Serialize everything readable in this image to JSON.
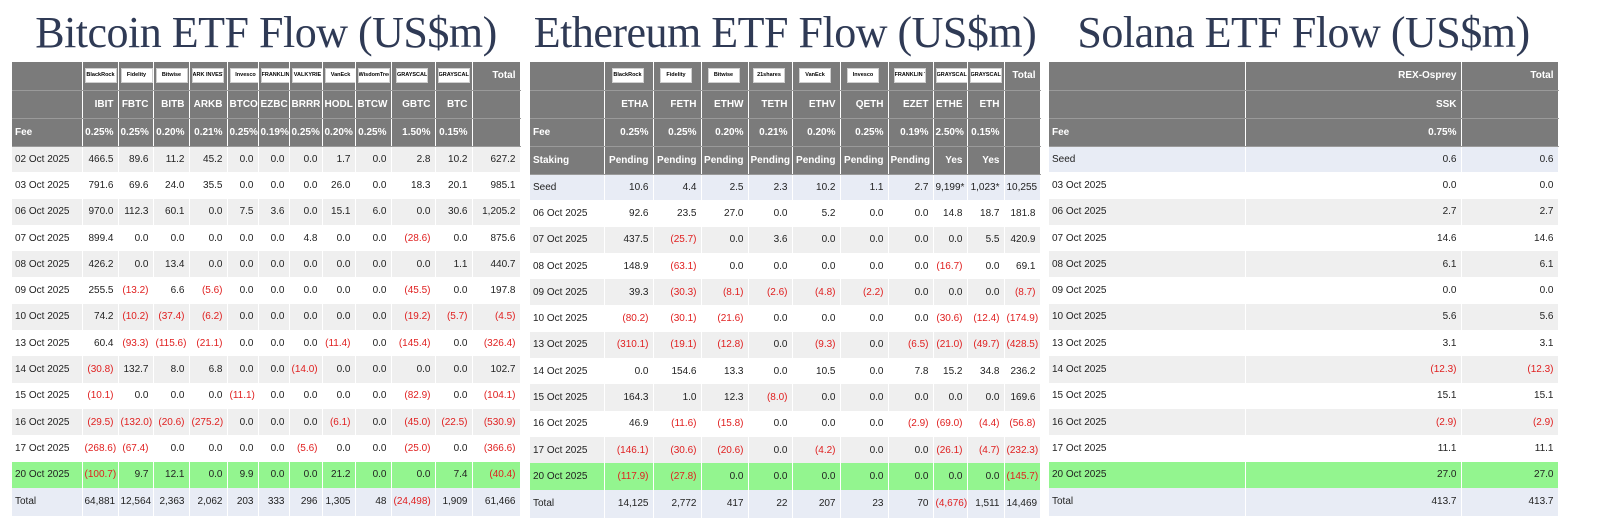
{
  "panels": [
    {
      "id": "btc",
      "title": "Bitcoin ETF Flow (US$m)",
      "issuers": [
        "BlackRock",
        "Fidelity",
        "Bitwise",
        "ARK INVEST",
        "Invesco",
        "FRANKLIN TEMPLETON",
        "VALKYRIE",
        "VanEck",
        "WisdomTree",
        "GRAYSCALE",
        "GRAYSCALE"
      ],
      "total_label": "Total",
      "tickers": [
        "IBIT",
        "FBTC",
        "BITB",
        "ARKB",
        "BTCO",
        "EZBC",
        "BRRR",
        "HODL",
        "BTCW",
        "GBTC",
        "BTC"
      ],
      "fee_label": "Fee",
      "fees": [
        "0.25%",
        "0.25%",
        "0.20%",
        "0.21%",
        "0.25%",
        "0.19%",
        "0.25%",
        "0.20%",
        "0.25%",
        "1.50%",
        "0.15%"
      ],
      "rows": [
        {
          "date": "02 Oct 2025",
          "values": [
            "466.5",
            "89.6",
            "11.2",
            "45.2",
            "0.0",
            "0.0",
            "0.0",
            "1.7",
            "0.0",
            "2.8",
            "10.2"
          ],
          "total": "627.2"
        },
        {
          "date": "03 Oct 2025",
          "values": [
            "791.6",
            "69.6",
            "24.0",
            "35.5",
            "0.0",
            "0.0",
            "0.0",
            "26.0",
            "0.0",
            "18.3",
            "20.1"
          ],
          "total": "985.1"
        },
        {
          "date": "06 Oct 2025",
          "values": [
            "970.0",
            "112.3",
            "60.1",
            "0.0",
            "7.5",
            "3.6",
            "0.0",
            "15.1",
            "6.0",
            "0.0",
            "30.6"
          ],
          "total": "1,205.2"
        },
        {
          "date": "07 Oct 2025",
          "values": [
            "899.4",
            "0.0",
            "0.0",
            "0.0",
            "0.0",
            "0.0",
            "4.8",
            "0.0",
            "0.0",
            "(28.6)",
            "0.0"
          ],
          "total": "875.6"
        },
        {
          "date": "08 Oct 2025",
          "values": [
            "426.2",
            "0.0",
            "13.4",
            "0.0",
            "0.0",
            "0.0",
            "0.0",
            "0.0",
            "0.0",
            "0.0",
            "1.1"
          ],
          "total": "440.7"
        },
        {
          "date": "09 Oct 2025",
          "values": [
            "255.5",
            "(13.2)",
            "6.6",
            "(5.6)",
            "0.0",
            "0.0",
            "0.0",
            "0.0",
            "0.0",
            "(45.5)",
            "0.0"
          ],
          "total": "197.8"
        },
        {
          "date": "10 Oct 2025",
          "values": [
            "74.2",
            "(10.2)",
            "(37.4)",
            "(6.2)",
            "0.0",
            "0.0",
            "0.0",
            "0.0",
            "0.0",
            "(19.2)",
            "(5.7)"
          ],
          "total": "(4.5)"
        },
        {
          "date": "13 Oct 2025",
          "values": [
            "60.4",
            "(93.3)",
            "(115.6)",
            "(21.1)",
            "0.0",
            "0.0",
            "0.0",
            "(11.4)",
            "0.0",
            "(145.4)",
            "0.0"
          ],
          "total": "(326.4)"
        },
        {
          "date": "14 Oct 2025",
          "values": [
            "(30.8)",
            "132.7",
            "8.0",
            "6.8",
            "0.0",
            "0.0",
            "(14.0)",
            "0.0",
            "0.0",
            "0.0",
            "0.0"
          ],
          "total": "102.7"
        },
        {
          "date": "15 Oct 2025",
          "values": [
            "(10.1)",
            "0.0",
            "0.0",
            "0.0",
            "(11.1)",
            "0.0",
            "0.0",
            "0.0",
            "0.0",
            "(82.9)",
            "0.0"
          ],
          "total": "(104.1)"
        },
        {
          "date": "16 Oct 2025",
          "values": [
            "(29.5)",
            "(132.0)",
            "(20.6)",
            "(275.2)",
            "0.0",
            "0.0",
            "0.0",
            "(6.1)",
            "0.0",
            "(45.0)",
            "(22.5)"
          ],
          "total": "(530.9)"
        },
        {
          "date": "17 Oct 2025",
          "values": [
            "(268.6)",
            "(67.4)",
            "0.0",
            "0.0",
            "0.0",
            "0.0",
            "(5.6)",
            "0.0",
            "0.0",
            "(25.0)",
            "0.0"
          ],
          "total": "(366.6)"
        },
        {
          "date": "20 Oct 2025",
          "values": [
            "(100.7)",
            "9.7",
            "12.1",
            "0.0",
            "9.9",
            "0.0",
            "0.0",
            "21.2",
            "0.0",
            "0.0",
            "7.4"
          ],
          "total": "(40.4)"
        }
      ],
      "totals": {
        "label": "Total",
        "values": [
          "64,881",
          "12,564",
          "2,363",
          "2,062",
          "203",
          "333",
          "296",
          "1,305",
          "48",
          "(24,498)",
          "1,909"
        ],
        "total": "61,466"
      }
    },
    {
      "id": "eth",
      "title": "Ethereum ETF Flow (US$m)",
      "issuers": [
        "BlackRock",
        "Fidelity",
        "Bitwise",
        "21shares",
        "VanEck",
        "Invesco",
        "FRANKLIN TEMPLETON",
        "GRAYSCALE",
        "GRAYSCALE"
      ],
      "total_label": "Total",
      "tickers": [
        "ETHA",
        "FETH",
        "ETHW",
        "TETH",
        "ETHV",
        "QETH",
        "EZET",
        "ETHE",
        "ETH"
      ],
      "fee_label": "Fee",
      "fees": [
        "0.25%",
        "0.25%",
        "0.20%",
        "0.21%",
        "0.20%",
        "0.25%",
        "0.19%",
        "2.50%",
        "0.15%"
      ],
      "staking_label": "Staking",
      "staking": [
        "Pending",
        "Pending",
        "Pending",
        "Pending",
        "Pending",
        "Pending",
        "Pending",
        "Yes",
        "Yes"
      ],
      "seed": {
        "label": "Seed",
        "values": [
          "10.6",
          "4.4",
          "2.5",
          "2.3",
          "10.2",
          "1.1",
          "2.7",
          "9,199*",
          "1,023*"
        ],
        "total": "10,255"
      },
      "rows": [
        {
          "date": "06 Oct 2025",
          "values": [
            "92.6",
            "23.5",
            "27.0",
            "0.0",
            "5.2",
            "0.0",
            "0.0",
            "14.8",
            "18.7"
          ],
          "total": "181.8"
        },
        {
          "date": "07 Oct 2025",
          "values": [
            "437.5",
            "(25.7)",
            "0.0",
            "3.6",
            "0.0",
            "0.0",
            "0.0",
            "0.0",
            "5.5"
          ],
          "total": "420.9"
        },
        {
          "date": "08 Oct 2025",
          "values": [
            "148.9",
            "(63.1)",
            "0.0",
            "0.0",
            "0.0",
            "0.0",
            "0.0",
            "(16.7)",
            "0.0"
          ],
          "total": "69.1"
        },
        {
          "date": "09 Oct 2025",
          "values": [
            "39.3",
            "(30.3)",
            "(8.1)",
            "(2.6)",
            "(4.8)",
            "(2.2)",
            "0.0",
            "0.0",
            "0.0"
          ],
          "total": "(8.7)"
        },
        {
          "date": "10 Oct 2025",
          "values": [
            "(80.2)",
            "(30.1)",
            "(21.6)",
            "0.0",
            "0.0",
            "0.0",
            "0.0",
            "(30.6)",
            "(12.4)"
          ],
          "total": "(174.9)"
        },
        {
          "date": "13 Oct 2025",
          "values": [
            "(310.1)",
            "(19.1)",
            "(12.8)",
            "0.0",
            "(9.3)",
            "0.0",
            "(6.5)",
            "(21.0)",
            "(49.7)"
          ],
          "total": "(428.5)"
        },
        {
          "date": "14 Oct 2025",
          "values": [
            "0.0",
            "154.6",
            "13.3",
            "0.0",
            "10.5",
            "0.0",
            "7.8",
            "15.2",
            "34.8"
          ],
          "total": "236.2"
        },
        {
          "date": "15 Oct 2025",
          "values": [
            "164.3",
            "1.0",
            "12.3",
            "(8.0)",
            "0.0",
            "0.0",
            "0.0",
            "0.0",
            "0.0"
          ],
          "total": "169.6"
        },
        {
          "date": "16 Oct 2025",
          "values": [
            "46.9",
            "(11.6)",
            "(15.8)",
            "0.0",
            "0.0",
            "0.0",
            "(2.9)",
            "(69.0)",
            "(4.4)"
          ],
          "total": "(56.8)"
        },
        {
          "date": "17 Oct 2025",
          "values": [
            "(146.1)",
            "(30.6)",
            "(20.6)",
            "0.0",
            "(4.2)",
            "0.0",
            "0.0",
            "(26.1)",
            "(4.7)"
          ],
          "total": "(232.3)"
        },
        {
          "date": "20 Oct 2025",
          "values": [
            "(117.9)",
            "(27.8)",
            "0.0",
            "0.0",
            "0.0",
            "0.0",
            "0.0",
            "0.0",
            "0.0"
          ],
          "total": "(145.7)"
        }
      ],
      "totals": {
        "label": "Total",
        "values": [
          "14,125",
          "2,772",
          "417",
          "22",
          "207",
          "23",
          "70",
          "(4,676)",
          "1,511"
        ],
        "total": "14,469"
      }
    },
    {
      "id": "sol",
      "title": "Solana ETF Flow (US$m)",
      "issuers": [
        "REX-Osprey"
      ],
      "total_label": "Total",
      "tickers": [
        "SSK"
      ],
      "fee_label": "Fee",
      "fees": [
        "0.75%"
      ],
      "seed": {
        "label": "Seed",
        "values": [
          "0.6"
        ],
        "total": "0.6"
      },
      "rows": [
        {
          "date": "03 Oct 2025",
          "values": [
            "0.0"
          ],
          "total": "0.0"
        },
        {
          "date": "06 Oct 2025",
          "values": [
            "2.7"
          ],
          "total": "2.7"
        },
        {
          "date": "07 Oct 2025",
          "values": [
            "14.6"
          ],
          "total": "14.6"
        },
        {
          "date": "08 Oct 2025",
          "values": [
            "6.1"
          ],
          "total": "6.1"
        },
        {
          "date": "09 Oct 2025",
          "values": [
            "0.0"
          ],
          "total": "0.0"
        },
        {
          "date": "10 Oct 2025",
          "values": [
            "5.6"
          ],
          "total": "5.6"
        },
        {
          "date": "13 Oct 2025",
          "values": [
            "3.1"
          ],
          "total": "3.1"
        },
        {
          "date": "14 Oct 2025",
          "values": [
            "(12.3)"
          ],
          "total": "(12.3)"
        },
        {
          "date": "15 Oct 2025",
          "values": [
            "15.1"
          ],
          "total": "15.1"
        },
        {
          "date": "16 Oct 2025",
          "values": [
            "(2.9)"
          ],
          "total": "(2.9)"
        },
        {
          "date": "17 Oct 2025",
          "values": [
            "11.1"
          ],
          "total": "11.1"
        },
        {
          "date": "20 Oct 2025",
          "values": [
            "27.0"
          ],
          "total": "27.0"
        }
      ],
      "totals": {
        "label": "Total",
        "values": [
          "413.7"
        ],
        "total": "413.7"
      }
    }
  ],
  "colors": {
    "header_bg": "#7b7b7b",
    "negative": "#e02020",
    "highlight_row": "#93f58f",
    "seed_and_total_row": "#e8ecf5",
    "stripe": "#efefef",
    "title": "#2f3a55"
  }
}
